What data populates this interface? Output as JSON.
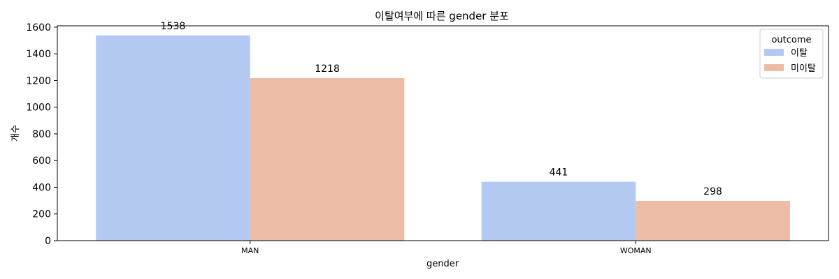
{
  "chart_data": {
    "type": "bar",
    "title": "이탈여부에 따른 gender 분포",
    "xlabel": "gender",
    "ylabel": "개수",
    "categories": [
      "MAN",
      "WOMAN"
    ],
    "series": [
      {
        "name": "이탈",
        "values": [
          1538,
          441
        ],
        "color": "#b3c9f2"
      },
      {
        "name": "미이탈",
        "values": [
          1218,
          298
        ],
        "color": "#ecbca6"
      }
    ],
    "ylim": [
      0,
      1610
    ],
    "yticks": [
      0,
      200,
      400,
      600,
      800,
      1000,
      1200,
      1400,
      1600
    ],
    "grid": false,
    "legend": {
      "title": "outcome",
      "placement": "top-right"
    }
  }
}
